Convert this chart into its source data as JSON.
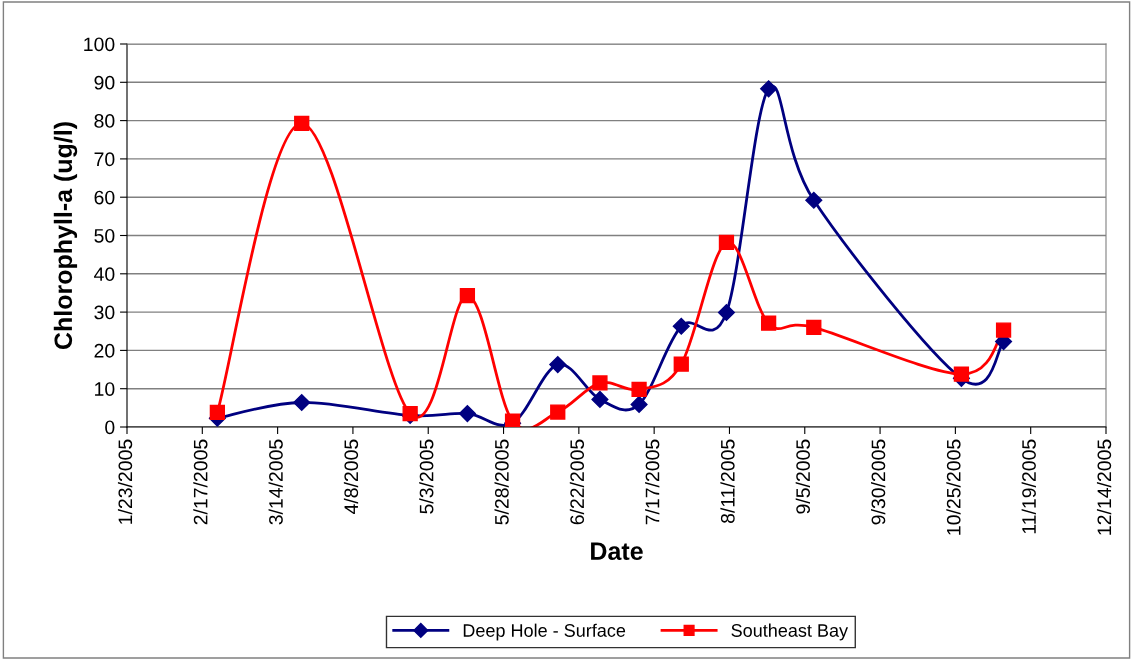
{
  "chart_data": {
    "type": "line",
    "xlabel": "Date",
    "ylabel": "Chlorophyll-a (ug/l)",
    "x": [
      "2005-02-22",
      "2005-03-22",
      "2005-04-27",
      "2005-05-16",
      "2005-05-31",
      "2005-06-15",
      "2005-06-29",
      "2005-07-12",
      "2005-07-26",
      "2005-08-10",
      "2005-08-24",
      "2005-09-08",
      "2005-10-27",
      "2005-11-10"
    ],
    "series": [
      {
        "name": "Deep Hole - Surface",
        "color": "#000080",
        "marker": "diamond",
        "values": [
          2.3,
          6.4,
          3,
          3.5,
          1.0,
          16.3,
          7.2,
          5.9,
          26.3,
          29.9,
          88.3,
          59.2,
          12.7,
          22.3
        ]
      },
      {
        "name": "Southeast Bay",
        "color": "#ff0000",
        "marker": "square",
        "values": [
          3.8,
          79.3,
          3.5,
          34.3,
          1.5,
          3.9,
          11.5,
          9.8,
          16.4,
          48.2,
          27.1,
          26.0,
          13.8,
          25.3
        ]
      }
    ],
    "xlim": [
      "2005-01-23",
      "2005-12-14"
    ],
    "xticks": [
      {
        "value": "2005-01-23",
        "label": "1/23/2005"
      },
      {
        "value": "2005-02-17",
        "label": "2/17/2005"
      },
      {
        "value": "2005-03-14",
        "label": "3/14/2005"
      },
      {
        "value": "2005-04-08",
        "label": "4/8/2005"
      },
      {
        "value": "2005-05-03",
        "label": "5/3/2005"
      },
      {
        "value": "2005-05-28",
        "label": "5/28/2005"
      },
      {
        "value": "2005-06-22",
        "label": "6/22/2005"
      },
      {
        "value": "2005-07-17",
        "label": "7/17/2005"
      },
      {
        "value": "2005-08-11",
        "label": "8/11/2005"
      },
      {
        "value": "2005-09-05",
        "label": "9/5/2005"
      },
      {
        "value": "2005-09-30",
        "label": "9/30/2005"
      },
      {
        "value": "2005-10-25",
        "label": "10/25/2005"
      },
      {
        "value": "2005-11-19",
        "label": "11/19/2005"
      },
      {
        "value": "2005-12-14",
        "label": "12/14/2005"
      }
    ],
    "ylim": [
      0,
      100
    ],
    "yticks": [
      0,
      10,
      20,
      30,
      40,
      50,
      60,
      70,
      80,
      90,
      100
    ],
    "grid": "y",
    "legend": "bottom",
    "line_style": "solid"
  }
}
